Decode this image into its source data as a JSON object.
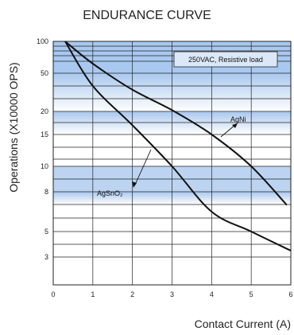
{
  "chart_data": {
    "type": "line",
    "title": "ENDURANCE CURVE",
    "xlabel": "Contact Current (A)",
    "ylabel": "Operations (X10000 OPS)",
    "xlim": [
      0,
      6
    ],
    "x_ticks": [
      "0",
      "1",
      "2",
      "3",
      "4",
      "5",
      "6"
    ],
    "y_ticks": [
      "3",
      "5",
      "8",
      "10",
      "15",
      "20",
      "50",
      "100"
    ],
    "y_tick_values": [
      3,
      5,
      8,
      10,
      15,
      20,
      50,
      100
    ],
    "grid": true,
    "series": [
      {
        "name": "AgNi",
        "x": [
          0.3,
          1,
          2,
          3,
          4,
          5,
          5.9
        ],
        "y": [
          100,
          65,
          37,
          21,
          15,
          10,
          7
        ]
      },
      {
        "name": "AgSnO₂",
        "x": [
          0.3,
          1,
          2,
          3,
          4,
          5,
          6
        ],
        "y": [
          100,
          40,
          17,
          10,
          6.5,
          5,
          3.5
        ]
      }
    ],
    "annotations": [
      "250VAC, Resistive load"
    ],
    "colors": {
      "band_dark": "#a9c8ef",
      "band_light": "#ffffff",
      "line": "#111111",
      "grid": "#222222"
    }
  }
}
